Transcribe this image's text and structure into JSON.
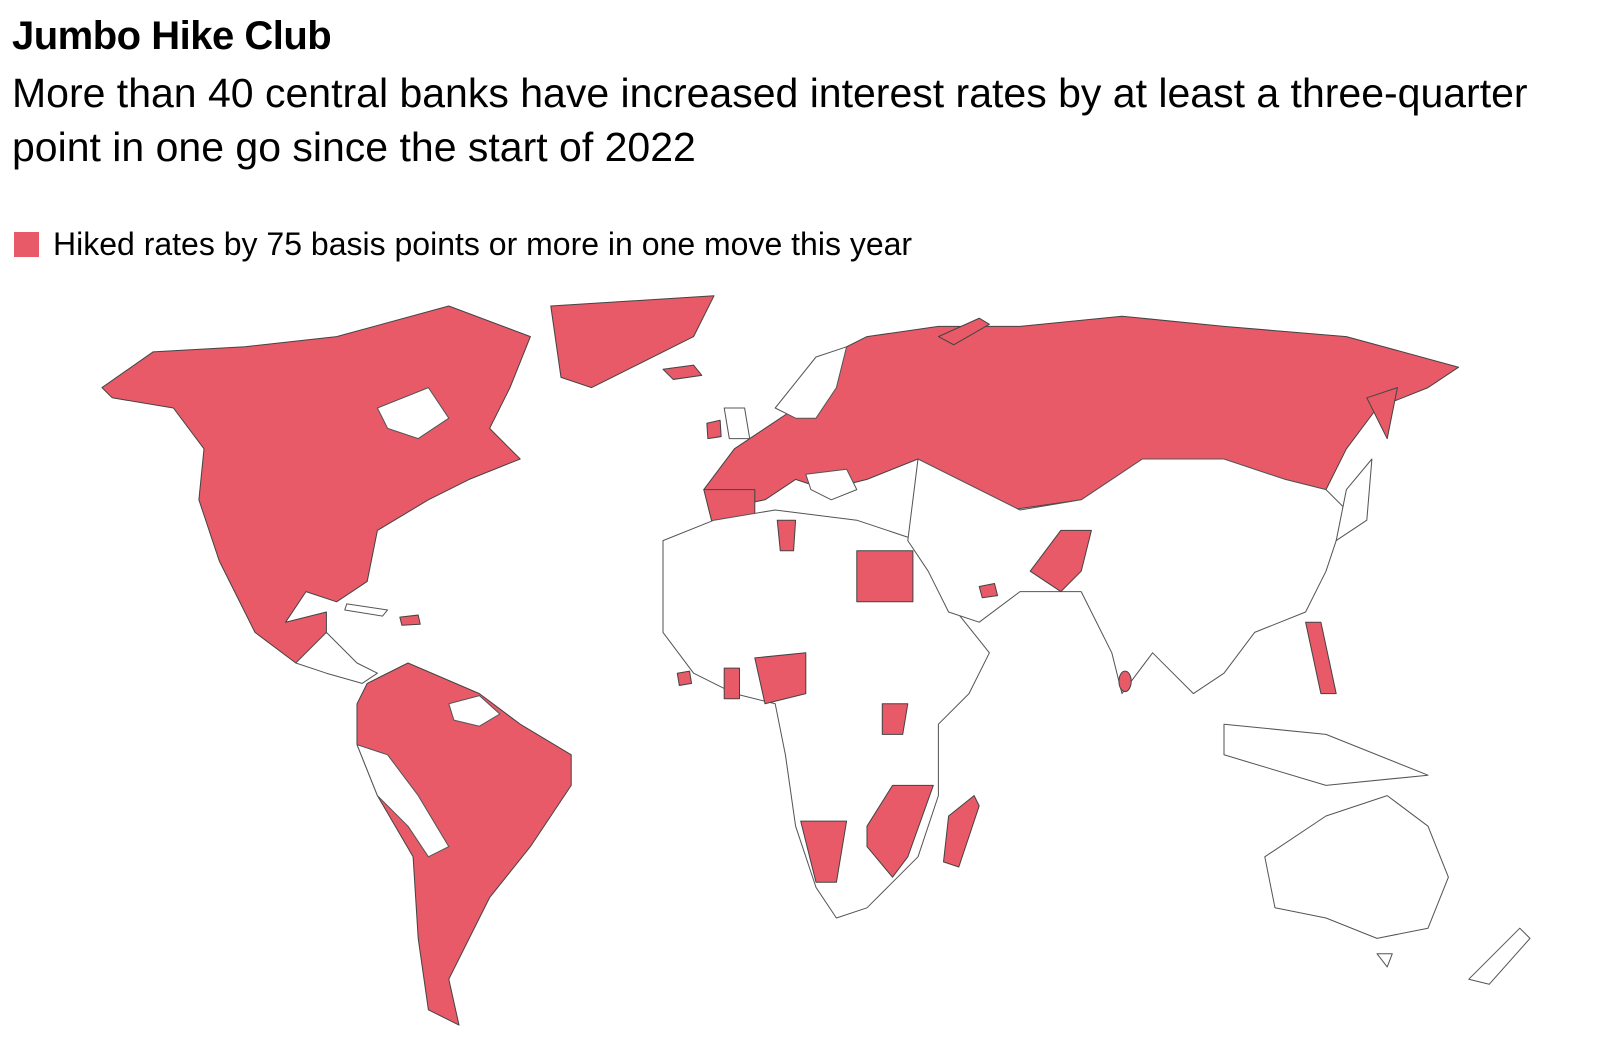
{
  "header": {
    "title": "Jumbo Hike Club",
    "subtitle": "More than 40 central banks have increased interest rates by at least a three-quarter point in one go since the start of 2022"
  },
  "legend": {
    "label": "Hiked rates by 75 basis points or more in one move this year",
    "color": "#e95a68"
  }
}
